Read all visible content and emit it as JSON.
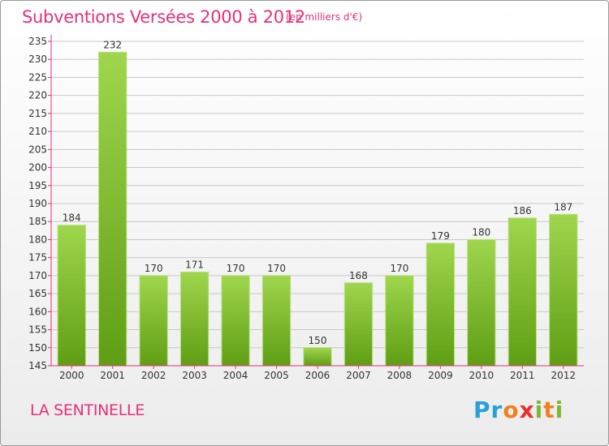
{
  "header": {
    "title": "Subventions Versées 2000 à 2012",
    "subtitle": "(en milliers d'€)"
  },
  "footer": {
    "place": "LA SENTINELLE",
    "logo_letters": [
      "P",
      "r",
      "o",
      "x",
      "i",
      "t",
      "i"
    ],
    "logo_colors": [
      "#2aa0d8",
      "#2aa0d8",
      "#f08020",
      "#e83030",
      "#80b832",
      "#f08020",
      "#80b832"
    ]
  },
  "chart_data": {
    "type": "bar",
    "title": "Subventions Versées 2000 à 2012",
    "subtitle": "(en milliers d'€)",
    "categories": [
      "2000",
      "2001",
      "2002",
      "2003",
      "2004",
      "2005",
      "2006",
      "2007",
      "2008",
      "2009",
      "2010",
      "2011",
      "2012"
    ],
    "values": [
      184,
      232,
      170,
      171,
      170,
      170,
      150,
      168,
      170,
      179,
      180,
      186,
      187
    ],
    "ylim": [
      145,
      235
    ],
    "yticks": [
      145,
      150,
      155,
      160,
      165,
      170,
      175,
      180,
      185,
      190,
      195,
      200,
      205,
      210,
      215,
      220,
      225,
      230,
      235
    ],
    "grid": true,
    "bar_color": "#7cbb2e",
    "grid_color": "#c8c8c8",
    "axis_color": "#e5317a"
  }
}
